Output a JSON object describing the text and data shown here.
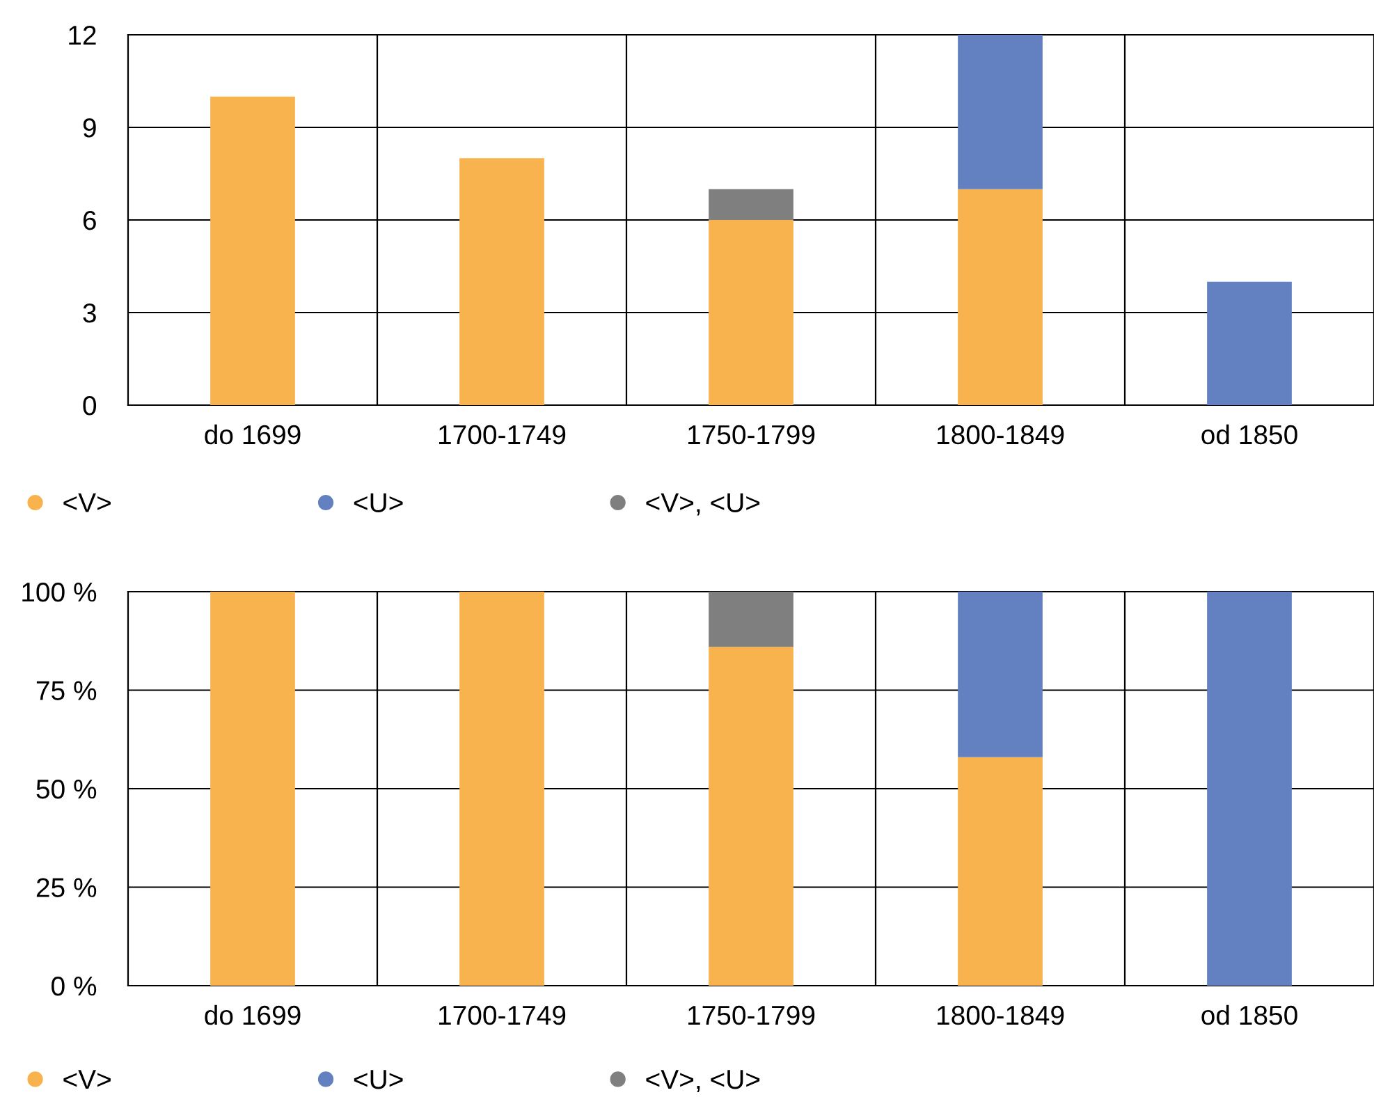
{
  "chart_data": [
    {
      "type": "bar",
      "stacked": true,
      "categories": [
        "do 1699",
        "1700-1749",
        "1750-1799",
        "1800-1849",
        "od 1850"
      ],
      "series": [
        {
          "name": "<V>",
          "color": "#f8b24e",
          "values": [
            10,
            8,
            6,
            7,
            0
          ]
        },
        {
          "name": "<U>",
          "color": "#6381c1",
          "values": [
            0,
            0,
            0,
            5,
            4
          ]
        },
        {
          "name": "<V>, <U>",
          "color": "#7f7f7f",
          "values": [
            0,
            0,
            1,
            0,
            0
          ]
        }
      ],
      "ylim": [
        0,
        12
      ],
      "yticks": [
        0,
        3,
        6,
        9,
        12
      ],
      "grid": true,
      "legend": "bottom",
      "marker": "circle"
    },
    {
      "type": "bar",
      "stacked": true,
      "categories": [
        "do 1699",
        "1700-1749",
        "1750-1799",
        "1800-1849",
        "od 1850"
      ],
      "series": [
        {
          "name": "<V>",
          "color": "#f8b24e",
          "values": [
            100,
            100,
            86,
            58,
            0
          ]
        },
        {
          "name": "<U>",
          "color": "#6381c1",
          "values": [
            0,
            0,
            0,
            42,
            100
          ]
        },
        {
          "name": "<V>, <U>",
          "color": "#7f7f7f",
          "values": [
            0,
            0,
            14,
            0,
            0
          ]
        }
      ],
      "ylim": [
        0,
        100
      ],
      "yticks": [
        {
          "value": 0,
          "label": "0 %"
        },
        {
          "value": 25,
          "label": "25 %"
        },
        {
          "value": 50,
          "label": "50 %"
        },
        {
          "value": 75,
          "label": "75 %"
        },
        {
          "value": 100,
          "label": "100 %"
        }
      ],
      "grid": true,
      "legend": "bottom",
      "marker": "circle"
    }
  ]
}
